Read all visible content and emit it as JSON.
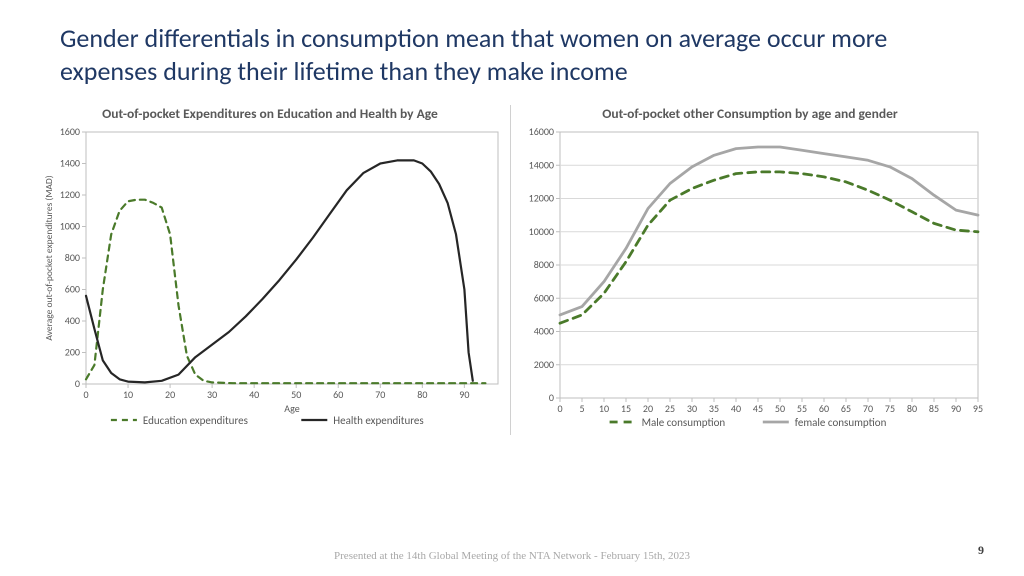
{
  "title": "Gender differentials in consumption mean that women on average occur more expenses during their lifetime than they make income",
  "footer": "Presented at the 14th Global Meeting of the NTA Network - February 15th, 2023",
  "page_number": "9",
  "chart_left": {
    "type": "line",
    "title": "Out-of-pocket Expenditures on Education and Health by Age",
    "xlabel": "Age",
    "ylabel": "Average out-of-pocket expenditures (MAD)",
    "xlim": [
      0,
      98
    ],
    "ylim": [
      0,
      1600
    ],
    "ytick_step": 200,
    "xtick_step": 10,
    "grid_color": "#e0e0e0",
    "background_color": "#ffffff",
    "axis_color": "#bfbfbf",
    "title_color": "#595959",
    "label_fontsize": 10,
    "title_fontsize": 13.5,
    "series": [
      {
        "name": "Education expenditures",
        "color": "#4a7a2a",
        "dash": "6,5",
        "line_width": 2.2,
        "legend_label": "Education expenditures",
        "x": [
          0,
          2,
          4,
          6,
          8,
          10,
          12,
          14,
          16,
          18,
          20,
          22,
          24,
          26,
          28,
          30,
          35,
          40,
          50,
          60,
          70,
          80,
          90,
          95
        ],
        "y": [
          30,
          120,
          600,
          950,
          1100,
          1160,
          1170,
          1170,
          1150,
          1120,
          950,
          500,
          180,
          60,
          20,
          10,
          5,
          5,
          5,
          5,
          5,
          5,
          5,
          5
        ]
      },
      {
        "name": "Health expenditures",
        "color": "#262626",
        "dash": "",
        "line_width": 2.2,
        "legend_label": "Health expenditures",
        "x": [
          0,
          2,
          4,
          6,
          8,
          10,
          14,
          18,
          22,
          26,
          30,
          34,
          38,
          42,
          46,
          50,
          54,
          58,
          62,
          66,
          70,
          74,
          78,
          80,
          82,
          84,
          86,
          88,
          90,
          91,
          92
        ],
        "y": [
          560,
          350,
          150,
          70,
          30,
          15,
          10,
          20,
          60,
          170,
          250,
          330,
          430,
          540,
          660,
          790,
          930,
          1080,
          1230,
          1340,
          1400,
          1420,
          1420,
          1400,
          1350,
          1270,
          1150,
          950,
          600,
          200,
          20
        ]
      }
    ]
  },
  "chart_right": {
    "type": "line",
    "title": "Out-of-pocket other Consumption by age and gender",
    "xlabel": "",
    "ylabel": "",
    "xlim": [
      0,
      95
    ],
    "ylim": [
      0,
      16000
    ],
    "ytick_step": 2000,
    "xtick_step": 5,
    "grid_color": "#d9d9d9",
    "background_color": "#ffffff",
    "axis_color": "#bfbfbf",
    "title_color": "#595959",
    "label_fontsize": 10,
    "title_fontsize": 13.5,
    "series": [
      {
        "name": "Male consumption",
        "color": "#4a7a2a",
        "dash": "8,6",
        "line_width": 2.8,
        "legend_label": "Male consumption",
        "x": [
          0,
          5,
          10,
          15,
          20,
          25,
          30,
          35,
          40,
          45,
          50,
          55,
          60,
          65,
          70,
          75,
          80,
          85,
          90,
          95
        ],
        "y": [
          4500,
          5000,
          6300,
          8200,
          10400,
          11900,
          12600,
          13100,
          13500,
          13600,
          13600,
          13500,
          13300,
          13000,
          12500,
          11900,
          11200,
          10500,
          10100,
          10000
        ]
      },
      {
        "name": "female consumption",
        "color": "#a6a6a6",
        "dash": "",
        "line_width": 2.8,
        "legend_label": "female consumption",
        "x": [
          0,
          5,
          10,
          15,
          20,
          25,
          30,
          35,
          40,
          45,
          50,
          55,
          60,
          65,
          70,
          75,
          80,
          85,
          90,
          95
        ],
        "y": [
          5000,
          5500,
          7000,
          9000,
          11400,
          12900,
          13900,
          14600,
          15000,
          15100,
          15100,
          14900,
          14700,
          14500,
          14300,
          13900,
          13200,
          12200,
          11300,
          11000
        ]
      }
    ]
  }
}
